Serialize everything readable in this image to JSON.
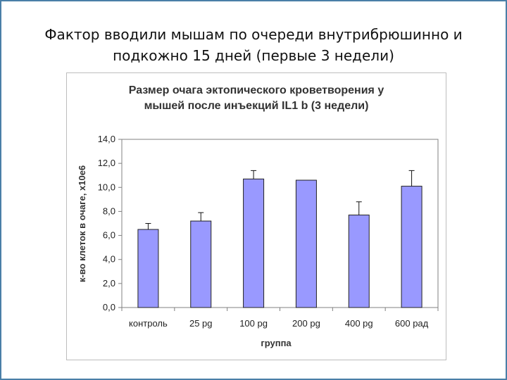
{
  "slide": {
    "title_line1": "Фактор вводили мышам по очереди внутрибрюшинно и",
    "title_line2": "подкожно 15 дней (первые 3 недели)"
  },
  "colors": {
    "bar": "#9999ff",
    "frame": "#4a7fa8"
  },
  "chart_data": {
    "type": "bar",
    "title_line1": "Размер очага эктопического кроветворения у",
    "title_line2": "мышей после инъекций IL1 b (3 недели)",
    "xlabel": "группа",
    "ylabel": "к-во клеток в очаге, x10e6",
    "ylim": [
      0,
      14
    ],
    "yticks": [
      "0,0",
      "2,0",
      "4,0",
      "6,0",
      "8,0",
      "10,0",
      "12,0",
      "14,0"
    ],
    "categories": [
      "контроль",
      "25 pg",
      "100 pg",
      "200 pg",
      "400 pg",
      "600 рад"
    ],
    "values": [
      6.5,
      7.2,
      10.7,
      10.6,
      7.7,
      10.1
    ],
    "errors": [
      0.5,
      0.7,
      0.7,
      0,
      1.1,
      1.3
    ],
    "grid": false,
    "legend": "none"
  }
}
